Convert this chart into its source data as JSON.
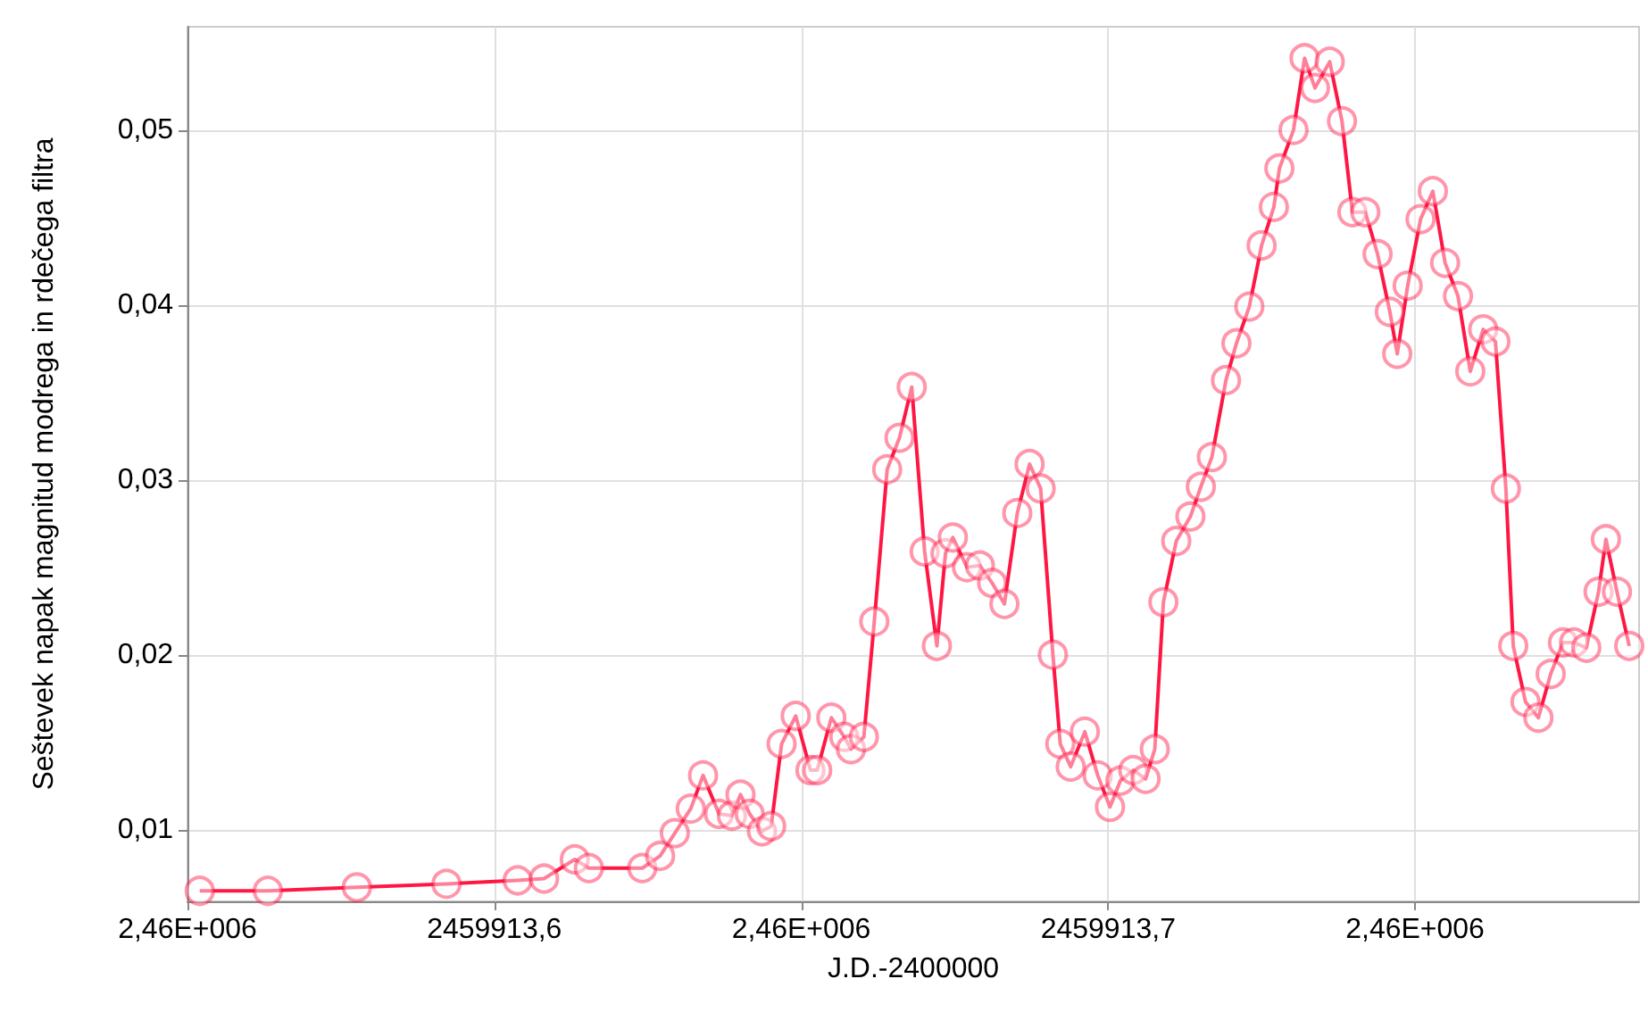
{
  "chart_data": {
    "type": "line",
    "xlabel": "J.D.-2400000",
    "ylabel": "Seštevek napak magnitud modrega in rdečega filtra",
    "x": [
      2459913.552,
      2459913.5631,
      2459913.5776,
      2459913.5922,
      2459913.6038,
      2459913.6081,
      2459913.6131,
      2459913.6154,
      2459913.6241,
      2459913.627,
      2459913.6294,
      2459913.632,
      2459913.634,
      2459913.6366,
      2459913.6387,
      2459913.6401,
      2459913.6416,
      2459913.6436,
      2459913.6451,
      2459913.6468,
      2459913.6491,
      2459913.6515,
      2459913.6526,
      2459913.6549,
      2459913.657,
      2459913.6581,
      2459913.6602,
      2459913.6619,
      2459913.664,
      2459913.666,
      2459913.668,
      2459913.6701,
      2459913.6721,
      2459913.6735,
      2459913.6747,
      2459913.677,
      2459913.6791,
      2459913.6811,
      2459913.6831,
      2459913.6852,
      2459913.6872,
      2459913.689,
      2459913.691,
      2459913.6922,
      2459913.6939,
      2459913.6962,
      2459913.6983,
      2459913.7003,
      2459913.702,
      2459913.7041,
      2459913.7061,
      2459913.7076,
      2459913.709,
      2459913.7111,
      2459913.7134,
      2459913.7151,
      2459913.7169,
      2459913.7192,
      2459913.7209,
      2459913.723,
      2459913.725,
      2459913.727,
      2459913.7279,
      2459913.7302,
      2459913.732,
      2459913.7337,
      2459913.7361,
      2459913.7381,
      2459913.7398,
      2459913.7419,
      2459913.7439,
      2459913.7459,
      2459913.7471,
      2459913.7488,
      2459913.7509,
      2459913.7529,
      2459913.7549,
      2459913.757,
      2459913.759,
      2459913.7611,
      2459913.7631,
      2459913.7648,
      2459913.766,
      2459913.768,
      2459913.7701,
      2459913.7721,
      2459913.7741,
      2459913.7759,
      2459913.7779,
      2459913.7799,
      2459913.7811,
      2459913.7829,
      2459913.7849
    ],
    "series": [
      {
        "color": "#ff1744",
        "values": [
          0.0065,
          0.0065,
          0.0067,
          0.0069,
          0.0071,
          0.0072,
          0.0083,
          0.0078,
          0.0078,
          0.0085,
          0.0098,
          0.0112,
          0.0131,
          0.0109,
          0.0108,
          0.012,
          0.0109,
          0.0099,
          0.0102,
          0.0149,
          0.0165,
          0.0134,
          0.0134,
          0.0164,
          0.0153,
          0.0146,
          0.0153,
          0.0219,
          0.0306,
          0.0324,
          0.0353,
          0.0259,
          0.0205,
          0.0258,
          0.0267,
          0.025,
          0.0251,
          0.0241,
          0.0229,
          0.0281,
          0.0309,
          0.0295,
          0.02,
          0.0149,
          0.0136,
          0.0156,
          0.0131,
          0.0113,
          0.0128,
          0.0134,
          0.0129,
          0.0146,
          0.023,
          0.0265,
          0.0279,
          0.0296,
          0.0313,
          0.0357,
          0.0378,
          0.0399,
          0.0434,
          0.0456,
          0.0478,
          0.05,
          0.0541,
          0.0524,
          0.0539,
          0.0505,
          0.0453,
          0.0453,
          0.0429,
          0.0396,
          0.0372,
          0.0411,
          0.0449,
          0.0465,
          0.0424,
          0.0405,
          0.0362,
          0.0386,
          0.0379,
          0.0295,
          0.0205,
          0.0173,
          0.0164,
          0.0189,
          0.0207,
          0.0207,
          0.0204,
          0.0236,
          0.0266,
          0.0236,
          0.0205
        ]
      }
    ],
    "xlim": [
      2459913.55,
      2459913.7865
    ],
    "xticks": [
      {
        "value": 2459913.55,
        "label": "2,46E+006"
      },
      {
        "value": 2459913.6,
        "label": "2459913,6"
      },
      {
        "value": 2459913.65,
        "label": "2,46E+006"
      },
      {
        "value": 2459913.7,
        "label": "2459913,7"
      },
      {
        "value": 2459913.75,
        "label": "2,46E+006"
      }
    ],
    "ylim": [
      0.0059,
      0.0559
    ],
    "yticks": [
      {
        "value": 0.01,
        "label": "0,01"
      },
      {
        "value": 0.02,
        "label": "0,02"
      },
      {
        "value": 0.03,
        "label": "0,03"
      },
      {
        "value": 0.04,
        "label": "0,04"
      },
      {
        "value": 0.05,
        "label": "0,05"
      }
    ],
    "grid": true,
    "marker": "circle",
    "line_style": "solid"
  }
}
